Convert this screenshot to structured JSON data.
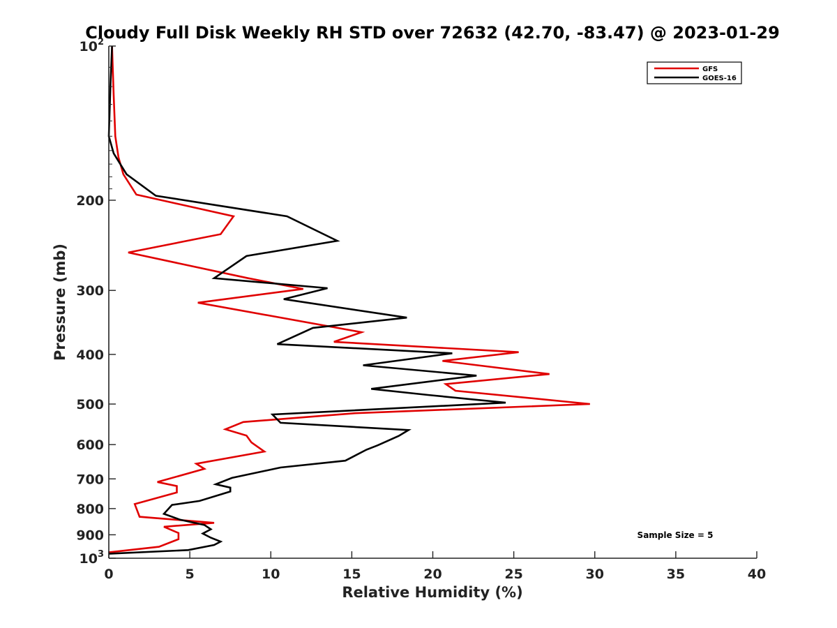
{
  "chart_data": {
    "type": "line",
    "title": "Cloudy Full Disk Weekly RH STD over 72632 (42.70, -83.47) @ 2023-01-29",
    "xlabel": "Relative Humidity (%)",
    "ylabel": "Pressure (mb)",
    "xlim": [
      0,
      40
    ],
    "ylim": [
      100,
      1000
    ],
    "yscale": "log",
    "y_reversed": true,
    "xticks": [
      "0",
      "5",
      "10",
      "15",
      "20",
      "25",
      "30",
      "35",
      "40"
    ],
    "yticks": [
      {
        "value": 100,
        "label": "10",
        "sup": "2"
      },
      {
        "value": 200,
        "label": "200",
        "sup": ""
      },
      {
        "value": 300,
        "label": "300",
        "sup": ""
      },
      {
        "value": 400,
        "label": "400",
        "sup": ""
      },
      {
        "value": 500,
        "label": "500",
        "sup": ""
      },
      {
        "value": 600,
        "label": "600",
        "sup": ""
      },
      {
        "value": 700,
        "label": "700",
        "sup": ""
      },
      {
        "value": 800,
        "label": "800",
        "sup": ""
      },
      {
        "value": 900,
        "label": "900",
        "sup": ""
      },
      {
        "value": 1000,
        "label": "10",
        "sup": "3"
      }
    ],
    "grid": false,
    "legend_position": "top-right",
    "series": [
      {
        "name": "GFS",
        "color": "#e00000",
        "points": [
          [
            0.2,
            100
          ],
          [
            0.3,
            125
          ],
          [
            0.4,
            150
          ],
          [
            0.6,
            165
          ],
          [
            0.9,
            178
          ],
          [
            1.7,
            195
          ],
          [
            7.7,
            215
          ],
          [
            6.9,
            233
          ],
          [
            1.2,
            253
          ],
          [
            8.6,
            284
          ],
          [
            12.0,
            298
          ],
          [
            5.5,
            317
          ],
          [
            15.6,
            362
          ],
          [
            13.9,
            378
          ],
          [
            25.3,
            396
          ],
          [
            20.6,
            412
          ],
          [
            27.2,
            437
          ],
          [
            20.8,
            457
          ],
          [
            21.4,
            471
          ],
          [
            29.7,
            500
          ],
          [
            15.2,
            521
          ],
          [
            8.3,
            542
          ],
          [
            7.2,
            560
          ],
          [
            8.5,
            576
          ],
          [
            8.8,
            594
          ],
          [
            9.6,
            619
          ],
          [
            5.4,
            654
          ],
          [
            5.9,
            669
          ],
          [
            3.0,
            710
          ],
          [
            4.2,
            723
          ],
          [
            4.2,
            744
          ],
          [
            1.6,
            784
          ],
          [
            1.9,
            830
          ],
          [
            6.5,
            853
          ],
          [
            3.4,
            868
          ],
          [
            4.3,
            893
          ],
          [
            4.3,
            918
          ],
          [
            3.1,
            950
          ],
          [
            0.0,
            974
          ]
        ]
      },
      {
        "name": "GOES-16",
        "color": "#000000",
        "points": [
          [
            0.2,
            100
          ],
          [
            0.1,
            120
          ],
          [
            0.0,
            150
          ],
          [
            0.3,
            162
          ],
          [
            1.1,
            178
          ],
          [
            2.9,
            196
          ],
          [
            11.0,
            215
          ],
          [
            14.1,
            240
          ],
          [
            8.5,
            257
          ],
          [
            6.5,
            284
          ],
          [
            13.5,
            297
          ],
          [
            10.8,
            312
          ],
          [
            18.4,
            339
          ],
          [
            12.6,
            355
          ],
          [
            10.4,
            382
          ],
          [
            21.2,
            398
          ],
          [
            15.7,
            420
          ],
          [
            22.7,
            440
          ],
          [
            16.2,
            467
          ],
          [
            19.7,
            480
          ],
          [
            24.5,
            497
          ],
          [
            10.1,
            524
          ],
          [
            10.6,
            544
          ],
          [
            18.5,
            562
          ],
          [
            17.9,
            577
          ],
          [
            16.6,
            602
          ],
          [
            15.9,
            614
          ],
          [
            14.6,
            645
          ],
          [
            10.6,
            665
          ],
          [
            7.6,
            697
          ],
          [
            6.6,
            717
          ],
          [
            7.5,
            728
          ],
          [
            7.5,
            741
          ],
          [
            5.6,
            773
          ],
          [
            3.9,
            787
          ],
          [
            3.4,
            819
          ],
          [
            4.4,
            841
          ],
          [
            5.9,
            861
          ],
          [
            6.3,
            878
          ],
          [
            5.8,
            895
          ],
          [
            6.3,
            912
          ],
          [
            6.9,
            928
          ],
          [
            6.5,
            942
          ],
          [
            4.9,
            964
          ],
          [
            0.0,
            980
          ]
        ]
      }
    ],
    "annotation": "Sample Size = 5"
  }
}
